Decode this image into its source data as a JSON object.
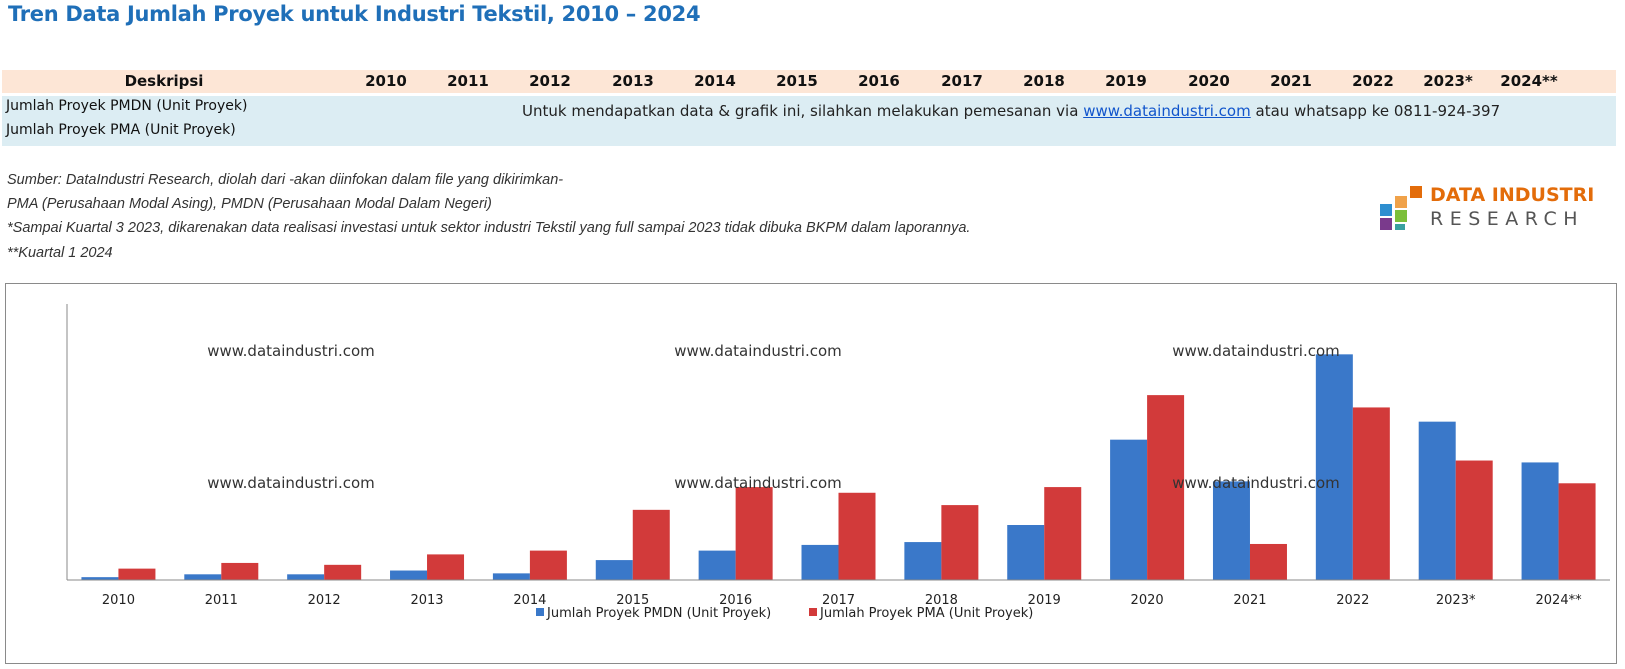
{
  "title": "Tren Data Jumlah Proyek untuk Industri Tekstil, 2010 – 2024",
  "table": {
    "header_label": "Deskripsi",
    "years": [
      "2010",
      "2011",
      "2012",
      "2013",
      "2014",
      "2015",
      "2016",
      "2017",
      "2018",
      "2019",
      "2020",
      "2021",
      "2022",
      "2023*",
      "2024**"
    ],
    "rows": [
      "Jumlah Proyek PMDN (Unit Proyek)",
      "Jumlah Proyek PMA (Unit Proyek)"
    ],
    "notice_prefix": "Untuk mendapatkan data & grafik ini, silahkan melakukan pemesanan via ",
    "notice_link": "www.dataindustri.com",
    "notice_suffix": " atau whatsapp ke 0811-924-397"
  },
  "notes": [
    "Sumber: DataIndustri Research, diolah dari -akan diinfokan dalam file yang dikirimkan-",
    "PMA (Perusahaan Modal Asing), PMDN (Perusahaan Modal Dalam Negeri)",
    "*Sampai Kuartal  3 2023, dikarenakan data realisasi investasi untuk sektor industri Tekstil yang full sampai 2023 tidak dibuka BKPM dalam laporannya.",
    "**Kuartal  1 2024"
  ],
  "logo": {
    "line1": "DATA INDUSTRI",
    "line2": "RESEARCH"
  },
  "watermark": "www.dataindustri.com",
  "colors": {
    "pmdn": "#3a78c9",
    "pma": "#d23a3a",
    "title": "#1f6fb8",
    "header_bg": "#fde6d6",
    "band_bg": "#dcedf3",
    "logo_orange": "#e36c0a"
  },
  "chart_data": {
    "type": "bar",
    "categories": [
      "2010",
      "2011",
      "2012",
      "2013",
      "2014",
      "2015",
      "2016",
      "2017",
      "2018",
      "2019",
      "2020",
      "2021",
      "2022",
      "2023*",
      "2024**"
    ],
    "series": [
      {
        "name": "Jumlah Proyek PMDN (Unit Proyek)",
        "values": [
          3,
          6,
          6,
          10,
          7,
          21,
          31,
          37,
          40,
          58,
          148,
          104,
          238,
          167,
          124
        ]
      },
      {
        "name": "Jumlah Proyek PMA (Unit Proyek)",
        "values": [
          12,
          18,
          16,
          27,
          31,
          74,
          98,
          92,
          79,
          98,
          195,
          38,
          182,
          126,
          102
        ]
      }
    ],
    "ylim": [
      0,
      270
    ],
    "legend": "bottom",
    "grid": false
  }
}
